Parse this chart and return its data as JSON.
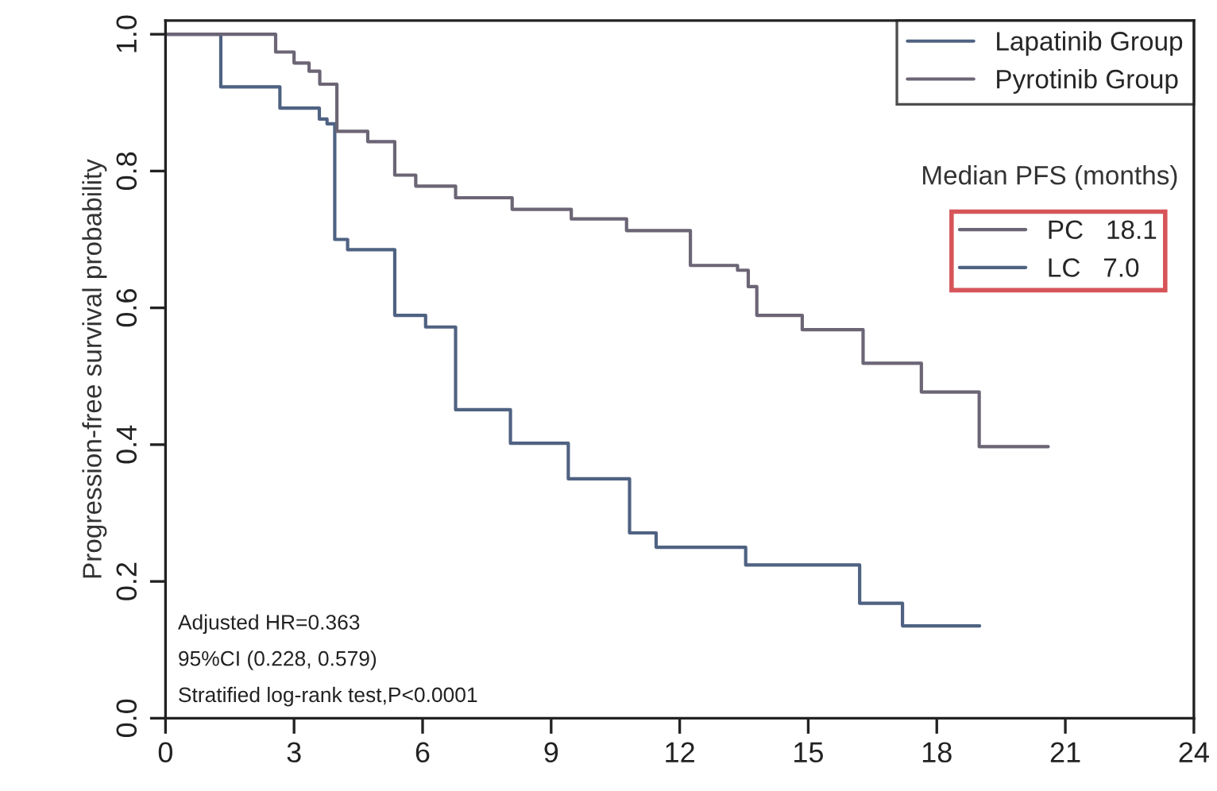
{
  "chart_data": {
    "type": "step",
    "ylabel": "Progression-free survival probability",
    "series": [
      {
        "name": "Lapatinib Group",
        "color": "#4f6282",
        "x": [
          0,
          1.29,
          2.67,
          3.59,
          3.77,
          3.95,
          4.25,
          5.35,
          6.07,
          6.77,
          8.05,
          9.4,
          10.83,
          11.45,
          13.54,
          16.2,
          17.2,
          19.0
        ],
        "values": [
          1.0,
          0.923,
          0.892,
          0.876,
          0.869,
          0.7,
          0.685,
          0.589,
          0.572,
          0.451,
          0.402,
          0.35,
          0.271,
          0.25,
          0.224,
          0.168,
          0.135,
          0.135
        ]
      },
      {
        "name": "Pyrotinib Group",
        "color": "#6b6575",
        "x": [
          0,
          2.57,
          3.0,
          3.35,
          3.6,
          4.0,
          4.72,
          5.35,
          5.84,
          6.77,
          8.09,
          9.47,
          10.76,
          12.25,
          13.35,
          13.6,
          13.8,
          14.86,
          16.28,
          17.64,
          18.99,
          20.6
        ],
        "values": [
          1.0,
          0.974,
          0.958,
          0.946,
          0.927,
          0.858,
          0.843,
          0.794,
          0.778,
          0.761,
          0.744,
          0.73,
          0.713,
          0.662,
          0.655,
          0.631,
          0.589,
          0.568,
          0.519,
          0.477,
          0.397,
          0.397
        ]
      }
    ],
    "xlim": [
      0,
      24
    ],
    "xticks": [
      0,
      3,
      6,
      9,
      12,
      15,
      18,
      21,
      24
    ],
    "ylim": [
      0,
      1.02
    ],
    "yticks": [
      {
        "value": 0,
        "label": "0.0"
      },
      {
        "value": 0.2,
        "label": "0.2"
      },
      {
        "value": 0.4,
        "label": "0.4"
      },
      {
        "value": 0.6,
        "label": "0.6"
      },
      {
        "value": 0.8,
        "label": "0.8"
      },
      {
        "value": 1,
        "label": "1.0"
      }
    ],
    "grid": false,
    "legend": "top right",
    "line_style": "solid",
    "marker": "none",
    "annotations": [
      "Adjusted HR=0.363",
      "95%CI (0.228, 0.579)",
      "Stratified log-rank test,P<0.0001",
      "Median PFS (months)",
      "PC   18.1",
      "LC   7.0"
    ]
  }
}
